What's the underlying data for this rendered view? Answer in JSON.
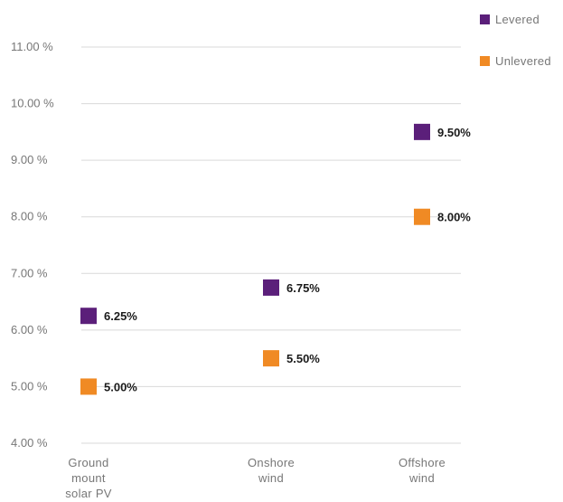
{
  "chart_data": {
    "type": "scatter",
    "title": "",
    "xlabel": "",
    "ylabel": "",
    "categories": [
      [
        "Ground",
        "mount",
        "solar PV"
      ],
      [
        "Onshore",
        "wind"
      ],
      [
        "Offshore",
        "wind"
      ]
    ],
    "series": [
      {
        "name": "Levered",
        "color": "#5b1f7a",
        "values": [
          6.25,
          6.75,
          9.5
        ],
        "labels": [
          "6.25%",
          "6.75%",
          "9.50%"
        ]
      },
      {
        "name": "Unlevered",
        "color": "#f08a24",
        "values": [
          5.0,
          5.5,
          8.0
        ],
        "labels": [
          "5.00%",
          "5.50%",
          "8.00%"
        ]
      }
    ],
    "ylim": [
      4,
      11
    ],
    "yticks": [
      4,
      5,
      6,
      7,
      8,
      9,
      10,
      11
    ],
    "ytick_labels": [
      "4.00 %",
      "5.00 %",
      "6.00 %",
      "7.00 %",
      "8.00 %",
      "9.00 %",
      "10.00 %",
      "11.00 %"
    ],
    "grid": true,
    "legend": "top-right"
  }
}
